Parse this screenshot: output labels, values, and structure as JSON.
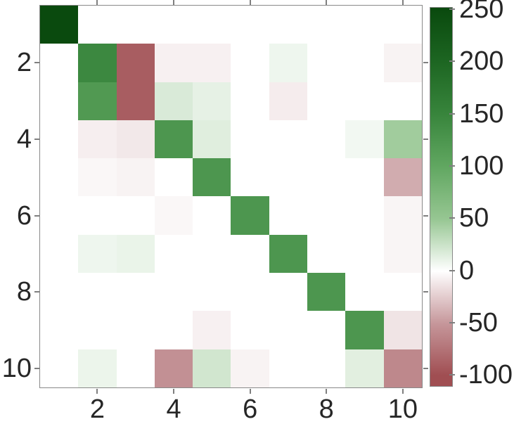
{
  "figure": {
    "background": "#ffffff",
    "axis_color": "#898989",
    "tick_color": "#7f7f7f",
    "label_color": "#262626"
  },
  "axes": {
    "x_tick_labels": [
      "2",
      "4",
      "6",
      "8",
      "10"
    ],
    "x_tick_values": [
      2,
      4,
      6,
      8,
      10
    ],
    "y_tick_labels": [
      "2",
      "4",
      "6",
      "8",
      "10"
    ],
    "y_tick_values": [
      2,
      4,
      6,
      8,
      10
    ]
  },
  "chart_data": {
    "type": "heatmap",
    "title": "",
    "xlabel": "",
    "ylabel": "",
    "rows": 10,
    "cols": 10,
    "x_categories": [
      1,
      2,
      3,
      4,
      5,
      6,
      7,
      8,
      9,
      10
    ],
    "y_categories": [
      1,
      2,
      3,
      4,
      5,
      6,
      7,
      8,
      9,
      10
    ],
    "matrix": [
      [
        250,
        0,
        0,
        0,
        0,
        0,
        0,
        0,
        0,
        0
      ],
      [
        0,
        145,
        -90,
        -7,
        -7,
        0,
        8,
        0,
        0,
        -6
      ],
      [
        0,
        120,
        -90,
        18,
        12,
        0,
        -9,
        0,
        0,
        0
      ],
      [
        0,
        -8,
        -11,
        125,
        15,
        0,
        0,
        0,
        6,
        45
      ],
      [
        0,
        -4,
        -6,
        0,
        125,
        0,
        0,
        0,
        0,
        -40
      ],
      [
        0,
        0,
        0,
        -4,
        0,
        125,
        0,
        0,
        0,
        -5
      ],
      [
        0,
        8,
        10,
        0,
        0,
        0,
        125,
        0,
        0,
        -5
      ],
      [
        0,
        0,
        0,
        0,
        0,
        0,
        0,
        125,
        0,
        0
      ],
      [
        0,
        0,
        0,
        0,
        -7,
        0,
        0,
        0,
        125,
        -13
      ],
      [
        0,
        9,
        0,
        -55,
        22,
        -6,
        0,
        0,
        14,
        -60
      ]
    ],
    "colorbar": {
      "tick_labels": [
        "250",
        "200",
        "150",
        "100",
        "50",
        "0",
        "-50",
        "-100"
      ],
      "tick_values": [
        250,
        200,
        150,
        100,
        50,
        0,
        -50,
        -100
      ],
      "vmax": 250,
      "vmin": -100,
      "position": "right"
    },
    "colormap_stops": [
      {
        "v": -100,
        "color": [
          160,
          78,
          82
        ]
      },
      {
        "v": -50,
        "color": [
          198,
          151,
          155
        ]
      },
      {
        "v": 0,
        "color": [
          255,
          255,
          255
        ]
      },
      {
        "v": 50,
        "color": [
          150,
          198,
          146
        ]
      },
      {
        "v": 100,
        "color": [
          97,
          167,
          97
        ]
      },
      {
        "v": 150,
        "color": [
          56,
          133,
          60
        ]
      },
      {
        "v": 200,
        "color": [
          29,
          102,
          34
        ]
      },
      {
        "v": 250,
        "color": [
          10,
          74,
          14
        ]
      }
    ],
    "grid": false,
    "legend": false
  }
}
